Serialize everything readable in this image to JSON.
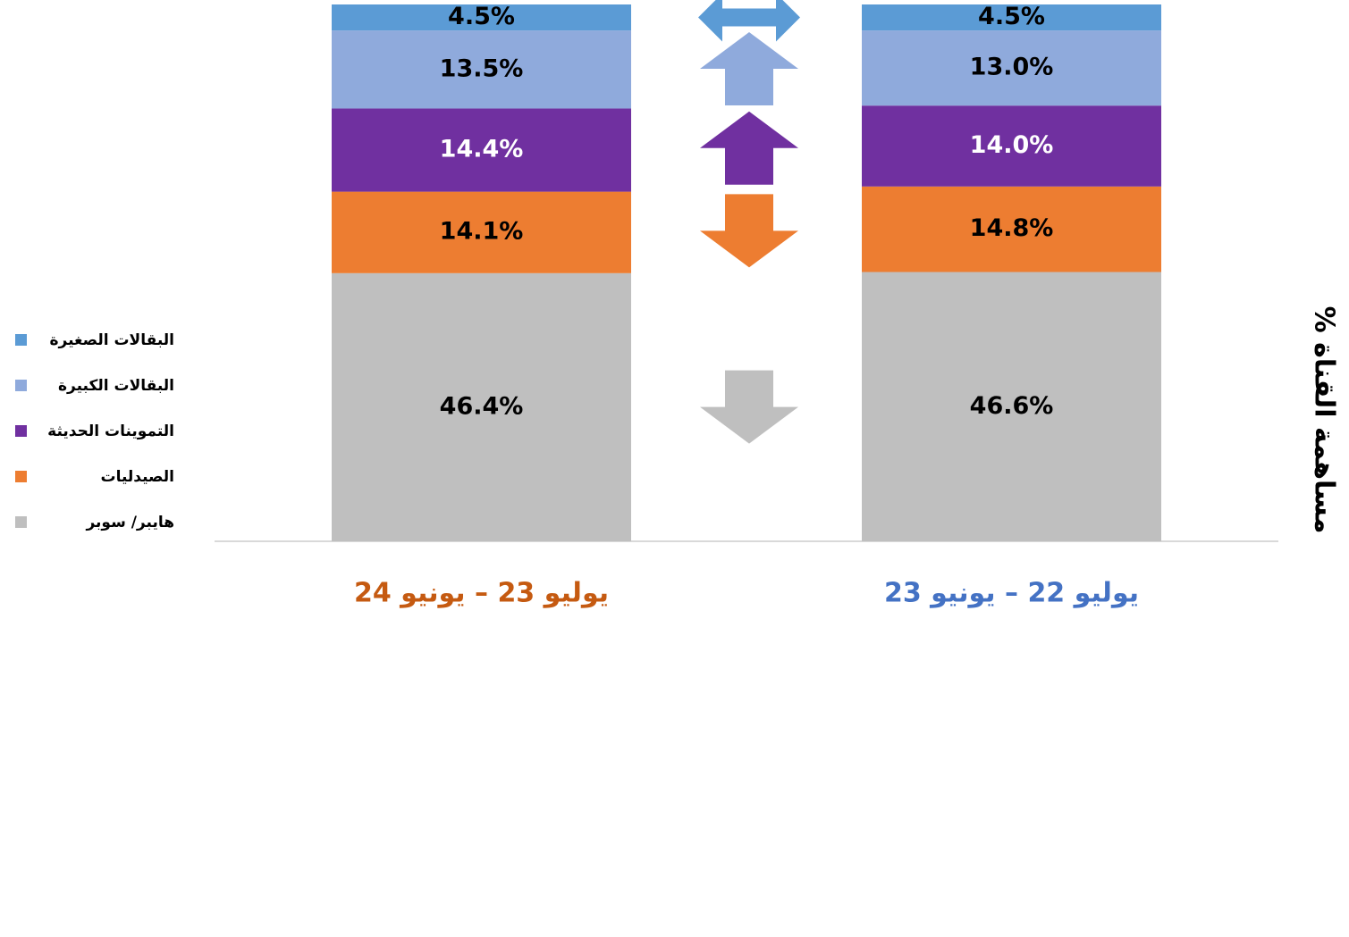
{
  "chart_data": {
    "type": "stacked_bar",
    "y_axis_label": "مساهمة القناة %",
    "categories": [
      "يوليو 23 – يونيو 24",
      "يوليو 22 – يونيو 23"
    ],
    "category_colors": [
      "#c55a11",
      "#4472c4"
    ],
    "series": [
      {
        "name": "هايبر/ سوبر",
        "color": "#bfbfbf",
        "label_color": "#000000",
        "values": [
          46.4,
          46.6
        ],
        "value_labels": [
          "46.4%",
          "46.6%"
        ]
      },
      {
        "name": "الصيدليات",
        "color": "#ed7d31",
        "label_color": "#000000",
        "values": [
          14.1,
          14.8
        ],
        "value_labels": [
          "14.1%",
          "14.8%"
        ]
      },
      {
        "name": "التموينات الحديثة",
        "color": "#7030a0",
        "label_color": "#ffffff",
        "values": [
          14.4,
          14.0
        ],
        "value_labels": [
          "14.4%",
          "14.0%"
        ]
      },
      {
        "name": "البقالات الكبيرة",
        "color": "#8faadc",
        "label_color": "#000000",
        "values": [
          13.5,
          13.0
        ],
        "value_labels": [
          "13.5%",
          "13.0%"
        ]
      },
      {
        "name": "البقالات الصغيرة",
        "color": "#5b9bd5",
        "label_color": "#000000",
        "values": [
          4.5,
          4.5
        ],
        "value_labels": [
          "4.5%",
          "4.5%"
        ]
      }
    ]
  }
}
